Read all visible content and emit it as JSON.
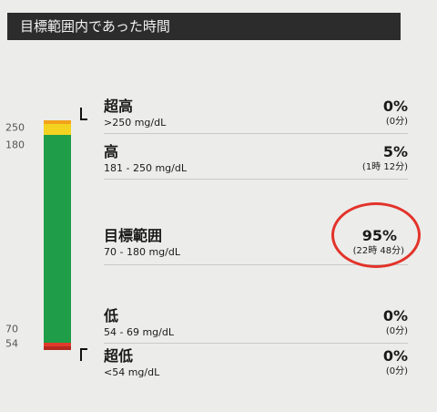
{
  "header": {
    "title": "目標範囲内であった時間"
  },
  "chart_data": {
    "type": "bar",
    "stacked": true,
    "scale_labels": [
      "250",
      "180",
      "70",
      "54"
    ],
    "categories": [
      {
        "name": "超高",
        "range": ">250 mg/dL",
        "percent": "0%",
        "duration": "(0分)",
        "value": 0,
        "color": "#f2a21b"
      },
      {
        "name": "高",
        "range": "181 - 250 mg/dL",
        "percent": "5%",
        "duration": "(1時 12分)",
        "value": 5,
        "color": "#f4d320"
      },
      {
        "name": "目標範囲",
        "range": "70 - 180 mg/dL",
        "percent": "95%",
        "duration": "(22時 48分)",
        "value": 95,
        "color": "#1f9d48",
        "highlighted": true
      },
      {
        "name": "低",
        "range": "54 - 69 mg/dL",
        "percent": "0%",
        "duration": "(0分)",
        "value": 0,
        "color": "#e23a2a"
      },
      {
        "name": "超低",
        "range": "<54 mg/dL",
        "percent": "0%",
        "duration": "(0分)",
        "value": 0,
        "color": "#b5281f"
      }
    ]
  }
}
